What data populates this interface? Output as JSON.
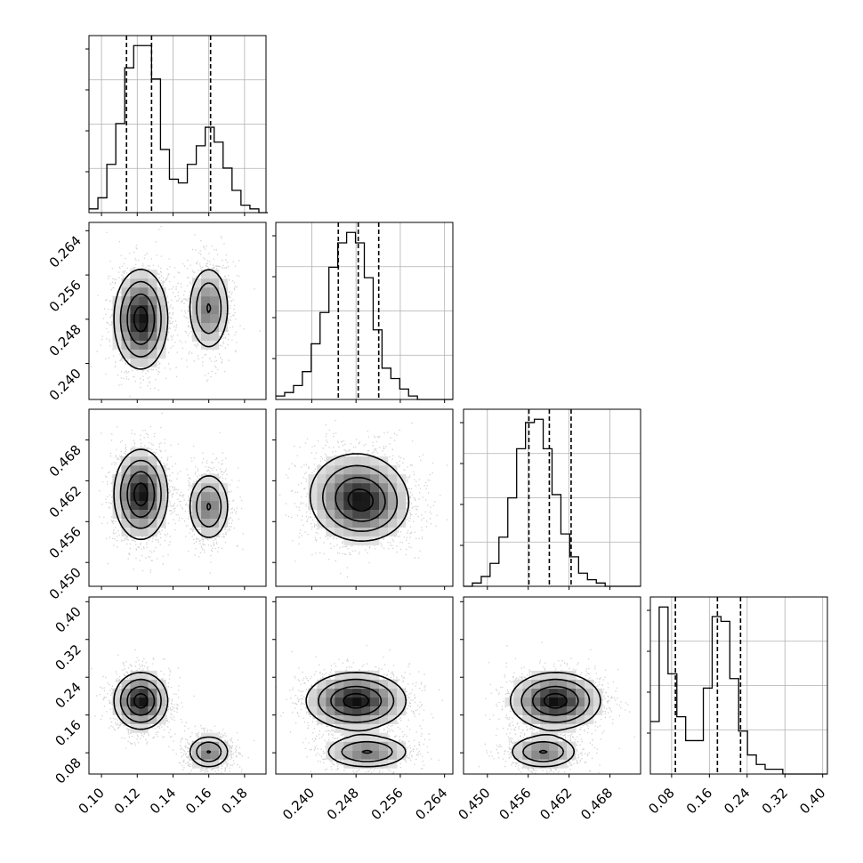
{
  "chart_data": {
    "type": "corner",
    "grid": true,
    "params": [
      {
        "range": [
          0.093,
          0.192
        ],
        "ticks": [
          0.1,
          0.12,
          0.14,
          0.16,
          0.18
        ],
        "tick_labels": [
          "0.10",
          "0.12",
          "0.14",
          "0.16",
          "0.18"
        ],
        "quantiles": [
          0.114,
          0.128,
          0.161
        ],
        "hist_edges_start": 0.093,
        "hist_bin_width": 0.005,
        "hist_counts": [
          1,
          4,
          13,
          24,
          39,
          45,
          45,
          36,
          17,
          9,
          8,
          13,
          18,
          23,
          19,
          12,
          6,
          2,
          1,
          0
        ]
      },
      {
        "range": [
          0.2335,
          0.2655
        ],
        "ticks": [
          0.24,
          0.248,
          0.256,
          0.264
        ],
        "tick_labels": [
          "0.240",
          "0.248",
          "0.256",
          "0.264"
        ],
        "quantiles": [
          0.2448,
          0.2484,
          0.2521
        ],
        "hist_edges_start": 0.2335,
        "hist_bin_width": 0.0016,
        "hist_counts": [
          1,
          2,
          4,
          8,
          16,
          25,
          38,
          45,
          48,
          45,
          35,
          20,
          9,
          6,
          3,
          1,
          0,
          0,
          0,
          0
        ]
      },
      {
        "range": [
          0.4465,
          0.4725
        ],
        "ticks": [
          0.45,
          0.456,
          0.462,
          0.468
        ],
        "tick_labels": [
          "0.450",
          "0.456",
          "0.462",
          "0.468"
        ],
        "quantiles": [
          0.4561,
          0.4591,
          0.4623
        ],
        "hist_edges_start": 0.4465,
        "hist_bin_width": 0.0013,
        "hist_counts": [
          0,
          1,
          3,
          7,
          15,
          27,
          42,
          50,
          51,
          42,
          28,
          16,
          9,
          4,
          2,
          1,
          0,
          0,
          0,
          0
        ]
      },
      {
        "range": [
          0.035,
          0.41
        ],
        "ticks": [
          0.08,
          0.16,
          0.24,
          0.32,
          0.4
        ],
        "tick_labels": [
          "0.08",
          "0.16",
          "0.24",
          "0.32",
          "0.40"
        ],
        "quantiles": [
          0.088,
          0.177,
          0.226
        ],
        "hist_edges_start": 0.035,
        "hist_bin_width": 0.0187,
        "hist_counts": [
          11,
          35,
          21,
          12,
          7,
          7,
          18,
          33,
          32,
          20,
          9,
          4,
          2,
          1,
          1,
          0,
          0,
          0,
          0,
          0
        ]
      }
    ],
    "modes": [
      {
        "weight": 0.62,
        "mean": [
          0.122,
          0.248,
          0.46,
          0.19
        ],
        "sd": [
          0.0075,
          0.0045,
          0.0033,
          0.03
        ]
      },
      {
        "weight": 0.38,
        "mean": [
          0.16,
          0.25,
          0.4582,
          0.082
        ],
        "sd": [
          0.006,
          0.004,
          0.0026,
          0.018
        ]
      }
    ]
  }
}
